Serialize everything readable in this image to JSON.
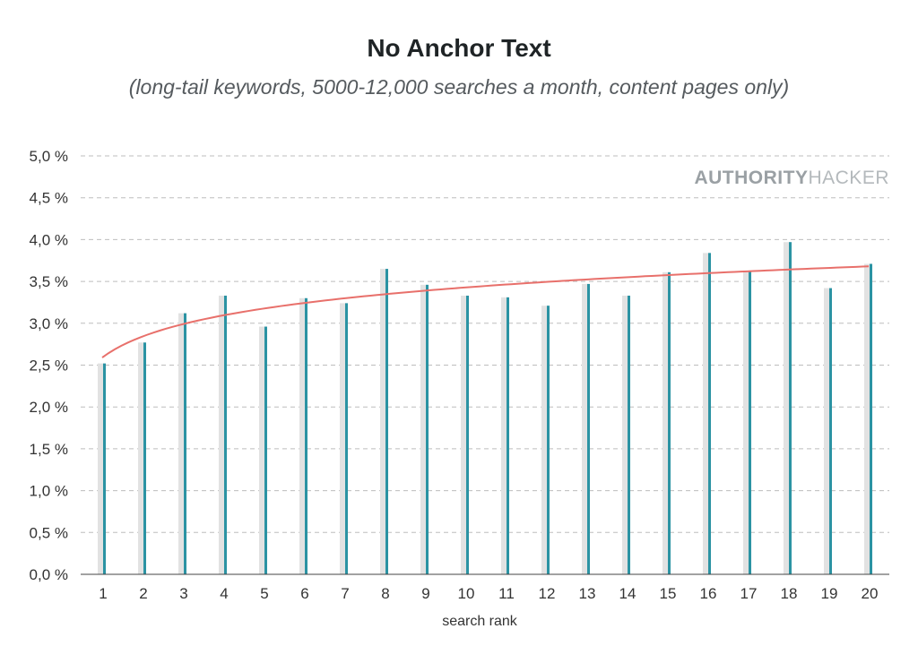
{
  "chart_data": {
    "type": "bar",
    "title": "No Anchor Text",
    "subtitle": "(long-tail keywords, 5000-12,000 searches a month, content pages only)",
    "xlabel": "search rank",
    "ylabel": "",
    "categories": [
      "1",
      "2",
      "3",
      "4",
      "5",
      "6",
      "7",
      "8",
      "9",
      "10",
      "11",
      "12",
      "13",
      "14",
      "15",
      "16",
      "17",
      "18",
      "19",
      "20"
    ],
    "series": [
      {
        "values": [
          2.52,
          2.77,
          3.12,
          3.33,
          2.96,
          3.3,
          3.24,
          3.65,
          3.46,
          3.33,
          3.31,
          3.21,
          3.47,
          3.33,
          3.61,
          3.84,
          3.63,
          3.97,
          3.42,
          3.71
        ],
        "color": "#2b93a3"
      }
    ],
    "shadow_color": "#e2e2e2",
    "trendline": {
      "type": "logarithmic",
      "start": 2.59,
      "end": 3.68,
      "color": "#e8706b"
    },
    "ylim": [
      0,
      5.0
    ],
    "yticks": [
      0.0,
      0.5,
      1.0,
      1.5,
      2.0,
      2.5,
      3.0,
      3.5,
      4.0,
      4.5,
      5.0
    ],
    "ytick_labels": [
      "0,0 %",
      "0,5 %",
      "1,0 %",
      "1,5 %",
      "2,0 %",
      "2,5 %",
      "3,0 %",
      "3,5 %",
      "4,0 %",
      "4,5 %",
      "5,0 %"
    ],
    "grid": true,
    "grid_style": "dashed",
    "legend": "none"
  },
  "brand": {
    "bold": "AUTHORITY",
    "light": "HACKER",
    "bold_color": "#9aa0a4",
    "light_color": "#b4b9bc"
  }
}
